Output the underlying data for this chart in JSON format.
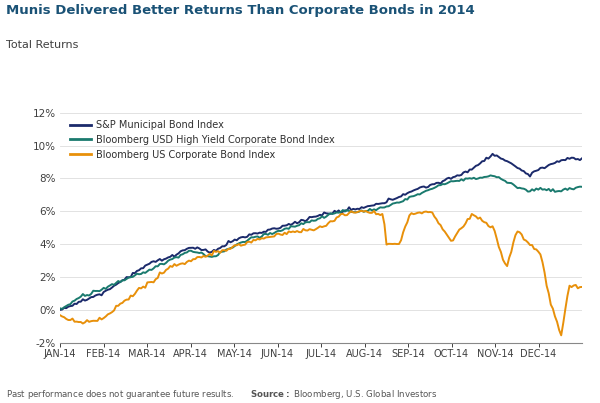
{
  "title": "Munis Delivered Better Returns Than Corporate Bonds in 2014",
  "ylabel": "Total Returns",
  "title_color": "#1A5276",
  "ylabel_color": "#404040",
  "background_color": "#ffffff",
  "line1_color": "#1B2A6B",
  "line2_color": "#1A7A6E",
  "line3_color": "#E8900A",
  "line1_label": "S&P Municipal Bond Index",
  "line2_label": "Bloomberg USD High Yield Corporate Bond Index",
  "line3_label": "Bloomberg US Corporate Bond Index",
  "xlabel_ticks": [
    "JAN-14",
    "FEB-14",
    "MAR-14",
    "APR-14",
    "MAY-14",
    "JUN-14",
    "JUL-14",
    "AUG-14",
    "SEP-14",
    "OCT-14",
    "NOV-14",
    "DEC-14"
  ],
  "ylim": [
    -0.02,
    0.12
  ],
  "yticks": [
    -0.02,
    0.0,
    0.02,
    0.04,
    0.06,
    0.08,
    0.1,
    0.12
  ],
  "footnote": "Past performance does not guarantee future results.",
  "source": "Bloomberg, U.S. Global Investors",
  "num_points": 252
}
